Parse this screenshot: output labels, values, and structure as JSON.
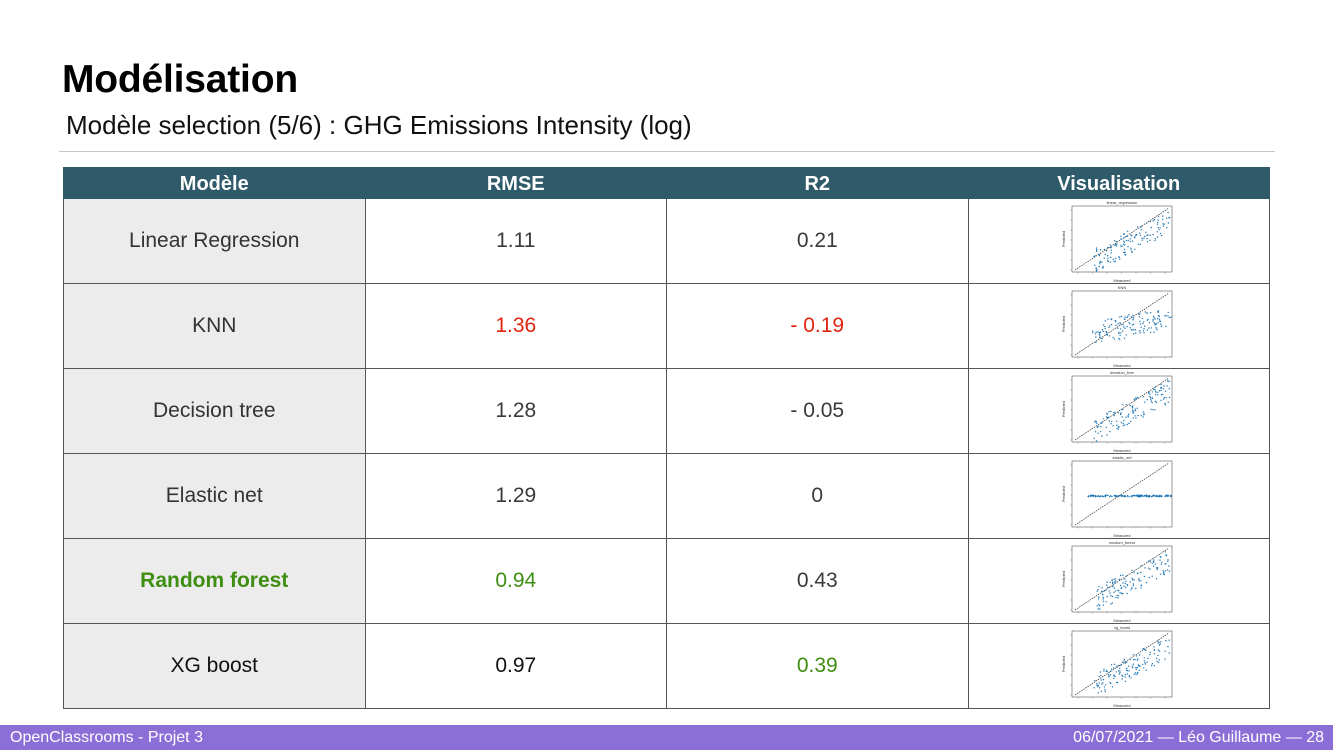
{
  "title": "Modélisation",
  "subtitle": "Modèle selection (5/6) : GHG Emissions Intensity (log)",
  "table": {
    "headers": [
      "Modèle",
      "RMSE",
      "R2",
      "Visualisation"
    ],
    "rows": [
      {
        "model": "Linear Regression",
        "rmse": "1.11",
        "r2": "0.21",
        "plot_title": "linear_regression",
        "x_label": "Measured",
        "y_label": "Predicted",
        "model_color": "#333333",
        "rmse_color": "#3a3a3a",
        "r2_color": "#3a3a3a",
        "pattern": "diag"
      },
      {
        "model": "KNN",
        "rmse": "1.36",
        "r2": "- 0.19",
        "plot_title": "KNN",
        "x_label": "Measured",
        "y_label": "Predicted",
        "model_color": "#333333",
        "rmse_color": "#e0250f",
        "r2_color": "#e0250f",
        "pattern": "flat-wide"
      },
      {
        "model": "Decision tree",
        "rmse": "1.28",
        "r2": "- 0.05",
        "plot_title": "decision_tree",
        "x_label": "Measured",
        "y_label": "Predicted",
        "model_color": "#333333",
        "rmse_color": "#3a3a3a",
        "r2_color": "#3a3a3a",
        "pattern": "diag"
      },
      {
        "model": "Elastic net",
        "rmse": "1.29",
        "r2": "0",
        "plot_title": "elastic_net",
        "x_label": "Measured",
        "y_label": "Predicted",
        "model_color": "#333333",
        "rmse_color": "#3a3a3a",
        "r2_color": "#3a3a3a",
        "pattern": "flat"
      },
      {
        "model": "Random forest",
        "rmse": "0.94",
        "r2": "0.43",
        "plot_title": "random_forest",
        "x_label": "Measured",
        "y_label": "Predicted",
        "model_color": "#3e8e11",
        "rmse_color": "#3e8e11",
        "r2_color": "#3a3a3a",
        "pattern": "diag"
      },
      {
        "model": "XG boost",
        "rmse": "0.97",
        "r2": "0.39",
        "plot_title": "xg_boost",
        "x_label": "Measured",
        "y_label": "Predicted",
        "model_color": "#111111",
        "rmse_color": "#111111",
        "r2_color": "#3e8e11",
        "pattern": "diag"
      }
    ]
  },
  "footer": {
    "left": "OpenClassrooms - Projet 3",
    "right": "06/07/2021  —  Léo Guillaume  —   28"
  },
  "colors": {
    "header_bg": "#2f5a69",
    "footer_bg": "#8b6fd6",
    "bad": "#e0250f",
    "good": "#3e8e11",
    "scatter_point": "#1f77b4"
  }
}
